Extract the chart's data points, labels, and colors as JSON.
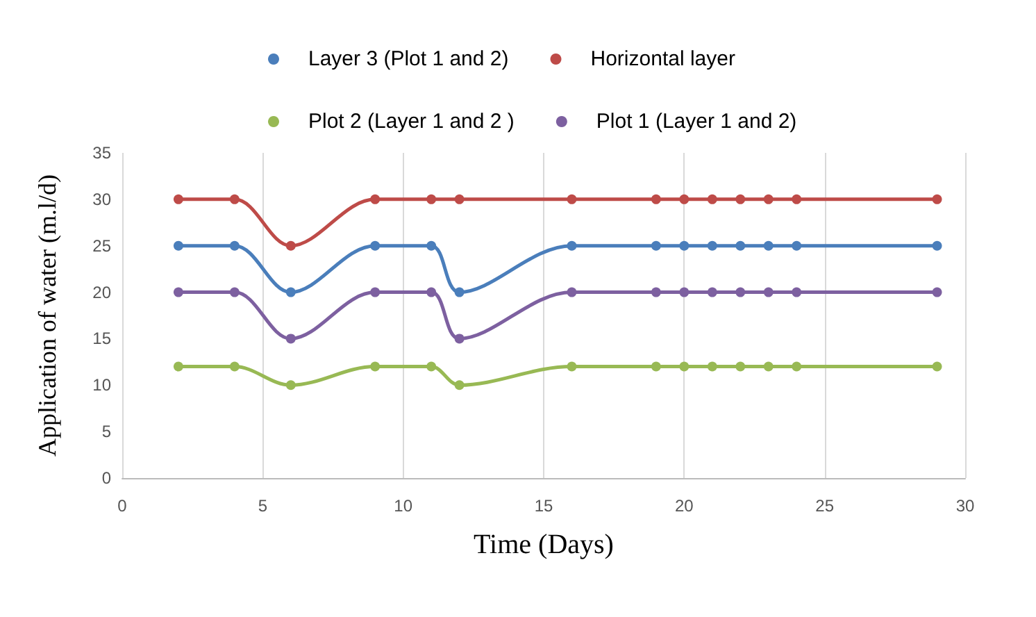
{
  "chart_data": {
    "type": "line",
    "xlabel": "Time (Days)",
    "ylabel": "Application of water (m.l/d)",
    "x": [
      2,
      4,
      6,
      9,
      11,
      12,
      16,
      19,
      20,
      21,
      22,
      23,
      24,
      29
    ],
    "series": [
      {
        "name": "Layer 3 (Plot 1 and 2)",
        "color": "#4a7ebb",
        "values": [
          25,
          25,
          20,
          25,
          25,
          20,
          25,
          25,
          25,
          25,
          25,
          25,
          25,
          25
        ]
      },
      {
        "name": "Horizontal layer",
        "color": "#be4b48",
        "values": [
          30,
          30,
          25,
          30,
          30,
          30,
          30,
          30,
          30,
          30,
          30,
          30,
          30,
          30
        ]
      },
      {
        "name": "Plot 2 (Layer 1 and 2 )",
        "color": "#98b954",
        "values": [
          12,
          12,
          10,
          12,
          12,
          10,
          12,
          12,
          12,
          12,
          12,
          12,
          12,
          12
        ]
      },
      {
        "name": "Plot 1 (Layer 1 and 2)",
        "color": "#7d60a0",
        "values": [
          20,
          20,
          15,
          20,
          20,
          15,
          20,
          20,
          20,
          20,
          20,
          20,
          20,
          20
        ]
      }
    ],
    "xlim": [
      0,
      30
    ],
    "xticks": [
      0,
      5,
      10,
      15,
      20,
      25,
      30
    ],
    "ylim": [
      0,
      35
    ],
    "yticks": [
      0,
      5,
      10,
      15,
      20,
      25,
      30,
      35
    ],
    "grid": "x",
    "legend": "top",
    "marker": "circle"
  }
}
